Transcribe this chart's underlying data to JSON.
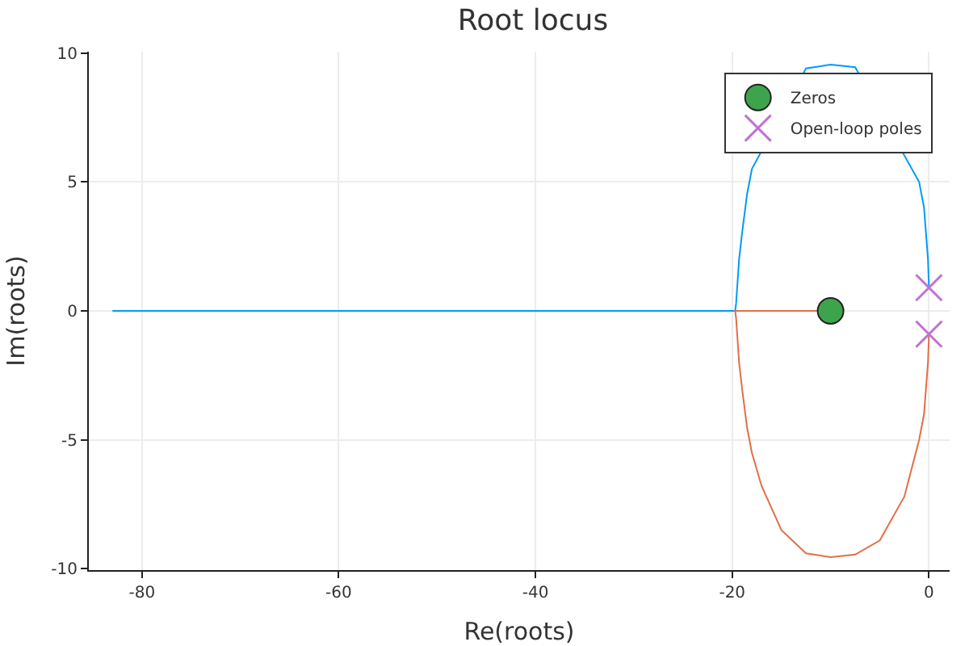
{
  "chart_data": {
    "type": "line",
    "title": "Root locus",
    "xlabel": "Re(roots)",
    "ylabel": "Im(roots)",
    "xlim": [
      -85.4,
      2.1
    ],
    "ylim": [
      -10.05,
      10.05
    ],
    "xticks": [
      -80,
      -60,
      -40,
      -20,
      0
    ],
    "yticks": [
      -10,
      -5,
      0,
      5,
      10
    ],
    "grid": true,
    "legend": "top right",
    "series": [
      {
        "color": "#009af9",
        "marker": "none",
        "x": [
          0,
          -0.1,
          -0.3,
          -0.5,
          -1,
          -7.5,
          -10,
          -12.5,
          -18,
          -18.5,
          -19,
          -19.3,
          -19.6,
          -19.7,
          -83
        ],
        "values": [
          0.9,
          2,
          3,
          4,
          5,
          9.45,
          9.55,
          9.4,
          5.5,
          4.5,
          3,
          2,
          0.3,
          0,
          0
        ]
      },
      {
        "color": "#e26f46",
        "marker": "none",
        "x": [
          0,
          -0.1,
          -0.3,
          -0.5,
          -1,
          -2.5,
          -5,
          -7.5,
          -10,
          -12.5,
          -15,
          -17,
          -18,
          -18.5,
          -19,
          -19.3,
          -19.6,
          -19.7,
          -10
        ],
        "values": [
          -0.9,
          -2,
          -3,
          -4,
          -5,
          -7.2,
          -8.9,
          -9.45,
          -9.55,
          -9.4,
          -8.5,
          -6.8,
          -5.5,
          -4.5,
          -3,
          -2,
          -0.3,
          0,
          0
        ]
      },
      {
        "type": "scatter",
        "name": "Zeros",
        "color": "#3da44d",
        "marker": "circle",
        "x": [
          -10
        ],
        "values": [
          0
        ]
      },
      {
        "type": "scatter",
        "name": "Open-loop poles",
        "color": "#c271d2",
        "marker": "cross",
        "x": [
          0,
          0
        ],
        "values": [
          0.9,
          -0.9
        ]
      }
    ]
  }
}
